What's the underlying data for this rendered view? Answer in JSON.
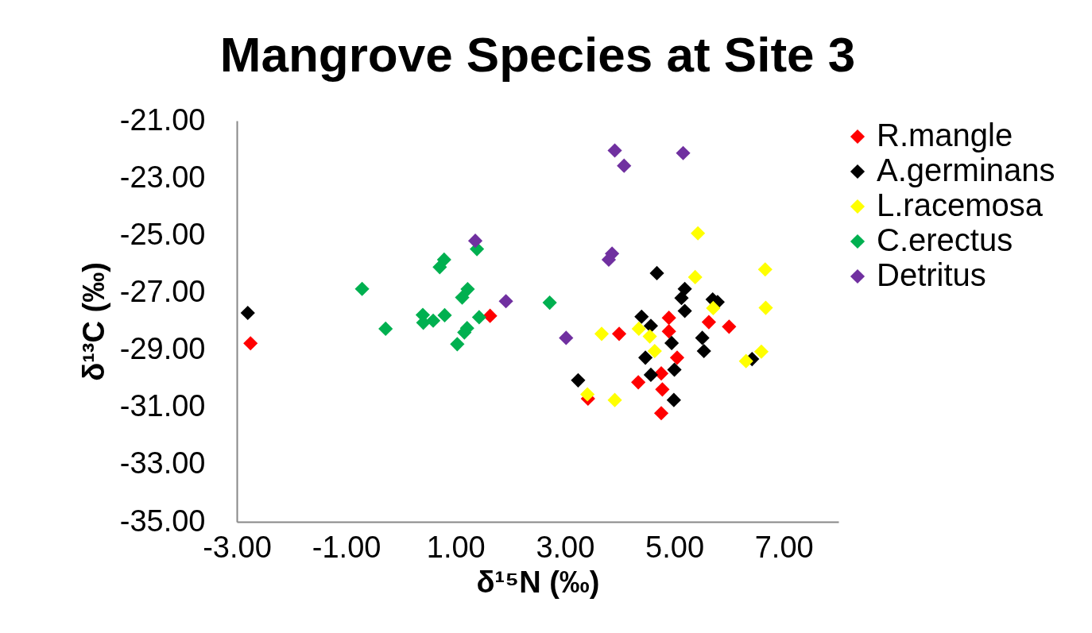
{
  "chart_data": {
    "type": "scatter",
    "title": "Mangrove Species at Site 3",
    "xlabel": "δ¹⁵N (‰)",
    "ylabel": "δ¹³C (‰)",
    "xlim": [
      -3,
      8
    ],
    "xticks": [
      {
        "value": -3,
        "label": "-3.00"
      },
      {
        "value": -1,
        "label": "-1.00"
      },
      {
        "value": 1,
        "label": "1.00"
      },
      {
        "value": 3,
        "label": "3.00"
      },
      {
        "value": 5,
        "label": "5.00"
      },
      {
        "value": 7,
        "label": "7.00"
      }
    ],
    "ylim": [
      -35,
      -21
    ],
    "yticks": [
      {
        "value": -35,
        "label": "-35.00"
      },
      {
        "value": -33,
        "label": "-33.00"
      },
      {
        "value": -31,
        "label": "-31.00"
      },
      {
        "value": -29,
        "label": "-29.00"
      },
      {
        "value": -27,
        "label": "-27.00"
      },
      {
        "value": -25,
        "label": "-25.00"
      },
      {
        "value": -23,
        "label": "-23.00"
      },
      {
        "value": -21,
        "label": "-21.00"
      }
    ],
    "grid": false,
    "legend": "right",
    "marker": "diamond",
    "series": [
      {
        "name": "R.mangle",
        "color": "#ff0000",
        "x": [
          -2.75,
          1.63,
          3.99,
          4.9,
          4.9,
          5.63,
          6.0,
          5.05,
          4.76,
          4.34,
          4.78,
          4.76,
          3.42
        ],
        "values": [
          -28.77,
          -27.81,
          -28.44,
          -27.88,
          -28.35,
          -28.03,
          -28.19,
          -29.27,
          -29.82,
          -30.13,
          -30.38,
          -31.21,
          -30.7
        ]
      },
      {
        "name": "A.germinans",
        "color": "#000000",
        "x": [
          -2.8,
          4.68,
          5.19,
          5.13,
          5.19,
          5.7,
          5.79,
          4.4,
          4.57,
          4.95,
          5.51,
          5.54,
          4.47,
          5.0,
          4.57,
          4.99,
          3.24,
          6.42
        ],
        "values": [
          -27.71,
          -26.32,
          -26.87,
          -27.19,
          -27.64,
          -27.24,
          -27.33,
          -27.84,
          -28.16,
          -28.76,
          -28.58,
          -29.04,
          -29.27,
          -29.69,
          -29.87,
          -30.75,
          -30.06,
          -29.32
        ]
      },
      {
        "name": "L.racemosa",
        "color": "#ffff00",
        "x": [
          5.43,
          6.66,
          5.38,
          5.71,
          6.67,
          3.67,
          4.35,
          4.55,
          4.64,
          3.41,
          3.91,
          6.31,
          6.59
        ],
        "values": [
          -24.93,
          -26.19,
          -26.46,
          -27.54,
          -27.53,
          -28.44,
          -28.26,
          -28.53,
          -29.04,
          -30.55,
          -30.75,
          -29.39,
          -29.06
        ]
      },
      {
        "name": "C.erectus",
        "color": "#00b050",
        "x": [
          -0.71,
          -0.28,
          0.4,
          0.41,
          0.59,
          0.8,
          0.79,
          0.71,
          1.39,
          1.22,
          1.12,
          1.43,
          1.21,
          1.03,
          1.16,
          2.72
        ],
        "values": [
          -26.87,
          -28.26,
          -27.78,
          -28.05,
          -27.98,
          -27.79,
          -25.85,
          -26.11,
          -25.48,
          -26.88,
          -27.17,
          -27.86,
          -28.24,
          -28.8,
          -28.39,
          -27.35
        ]
      },
      {
        "name": "Detritus",
        "color": "#7030a0",
        "x": [
          1.36,
          1.92,
          3.91,
          4.08,
          5.16,
          3.86,
          3.8,
          3.02
        ],
        "values": [
          -25.19,
          -27.3,
          -22.04,
          -22.57,
          -22.13,
          -25.64,
          -25.85,
          -28.58
        ]
      }
    ]
  }
}
